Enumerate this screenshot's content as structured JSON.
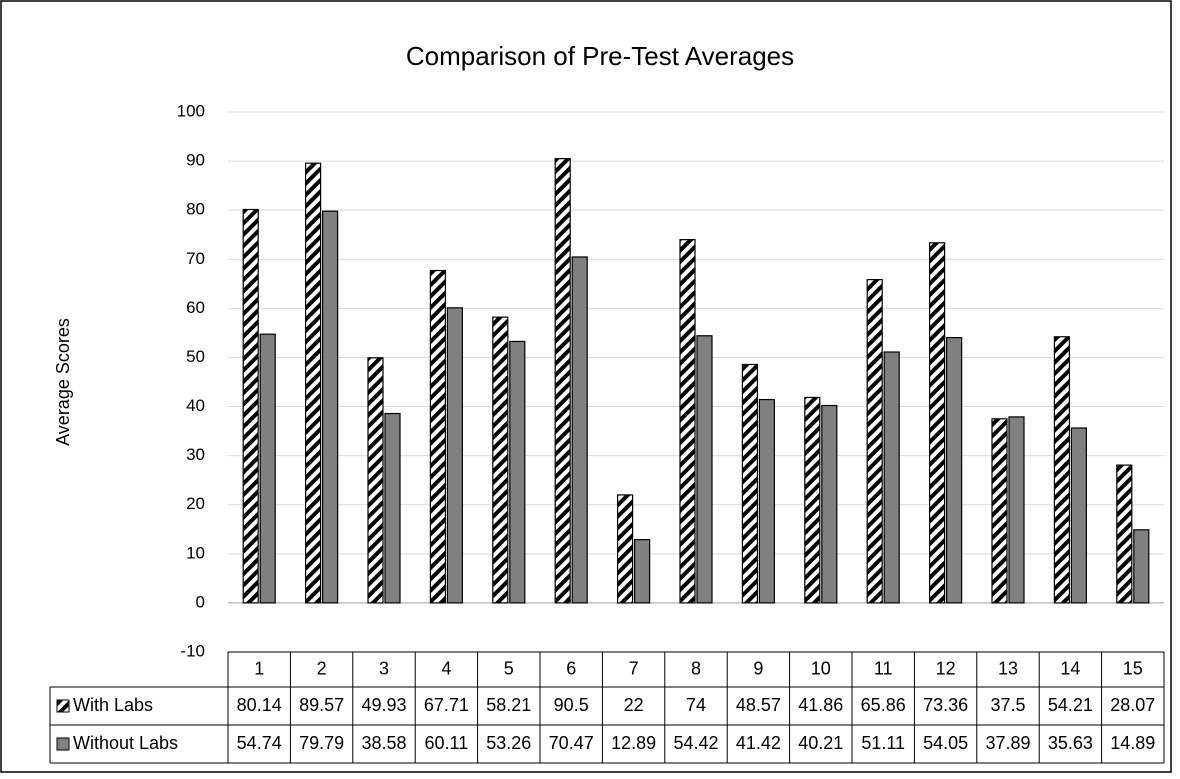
{
  "chart_data": {
    "type": "bar",
    "title": "Comparison of Pre-Test Averages",
    "y_label": "Average Scores",
    "categories": [
      "1",
      "2",
      "3",
      "4",
      "5",
      "6",
      "7",
      "8",
      "9",
      "10",
      "11",
      "12",
      "13",
      "14",
      "15"
    ],
    "series": [
      {
        "name": "With Labs",
        "color": "#000000",
        "values": [
          80.14,
          89.57,
          49.93,
          67.71,
          58.21,
          90.5,
          22,
          74,
          48.57,
          41.86,
          65.86,
          73.36,
          37.5,
          54.21,
          28.07
        ]
      },
      {
        "name": "Without Labs",
        "color": "#808080",
        "values": [
          54.74,
          79.79,
          38.58,
          60.11,
          53.26,
          70.47,
          12.89,
          54.42,
          41.42,
          40.21,
          51.11,
          54.05,
          37.89,
          35.63,
          14.89
        ]
      }
    ],
    "ylim": [
      -10,
      100
    ],
    "yticks": [
      -10,
      0,
      10,
      20,
      30,
      40,
      50,
      60,
      70,
      80,
      90,
      100
    ],
    "grid": true,
    "data_table": true
  }
}
